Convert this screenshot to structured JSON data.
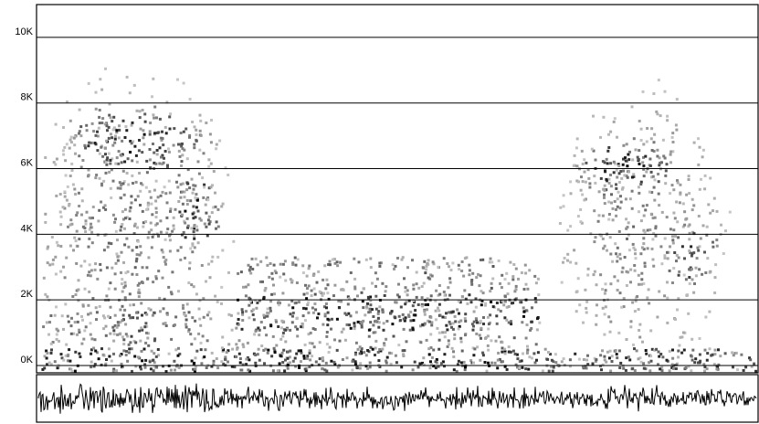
{
  "chart_data": {
    "type": "spectrogram",
    "ylim": [
      0,
      11000
    ],
    "yticks": [
      {
        "value": 0,
        "label": "0K"
      },
      {
        "value": 2000,
        "label": "2K"
      },
      {
        "value": 4000,
        "label": "4K"
      },
      {
        "value": 6000,
        "label": "6K"
      },
      {
        "value": 8000,
        "label": "8K"
      },
      {
        "value": 10000,
        "label": "10K"
      }
    ],
    "grid": true
  }
}
